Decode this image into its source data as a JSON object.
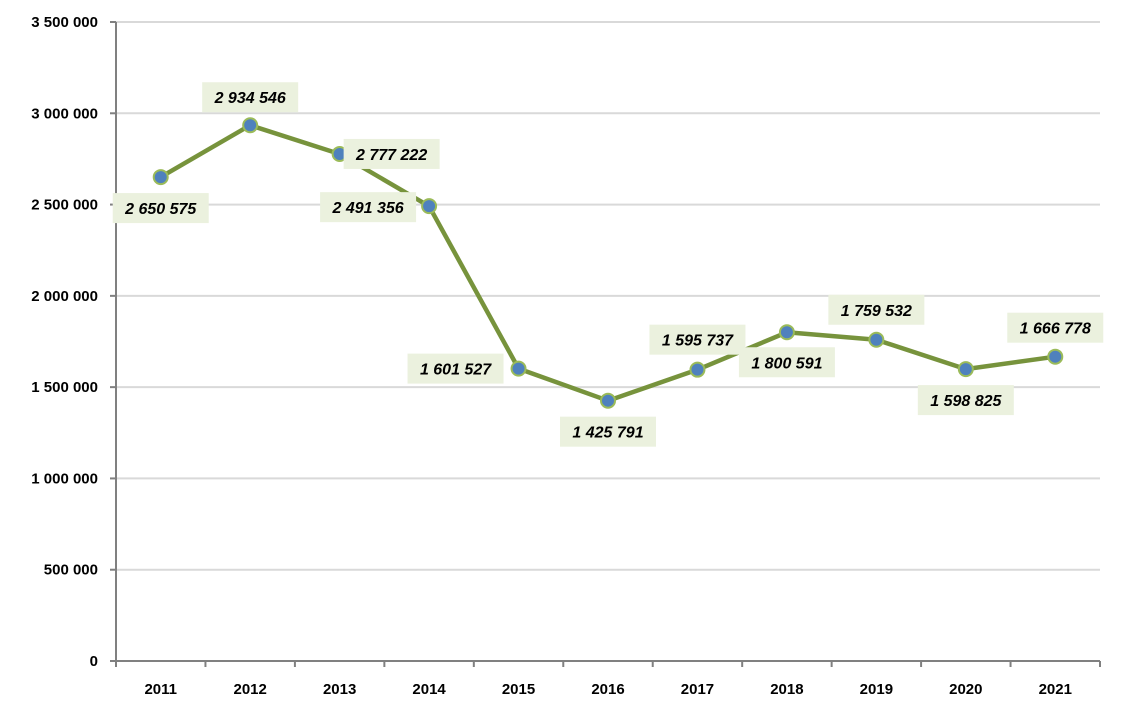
{
  "chart_data": {
    "type": "line",
    "title": "",
    "xlabel": "",
    "ylabel": "",
    "categories": [
      "2011",
      "2012",
      "2013",
      "2014",
      "2015",
      "2016",
      "2017",
      "2018",
      "2019",
      "2020",
      "2021"
    ],
    "series": [
      {
        "name": "",
        "values": [
          2650575,
          2934546,
          2777222,
          2491356,
          1601527,
          1425791,
          1595737,
          1800591,
          1759532,
          1598825,
          1666778
        ],
        "data_labels": [
          "2 650 575",
          "2 934 546",
          "2 777 222",
          "2 491 356",
          "1 601 527",
          "1 425 791",
          "1 595 737",
          "1 800 591",
          "1 759 532",
          "1 598 825",
          "1 666 778"
        ]
      }
    ],
    "ylim": [
      0,
      3500000
    ],
    "yticks": [
      0,
      500000,
      1000000,
      1500000,
      2000000,
      2500000,
      3000000,
      3500000
    ],
    "ytick_labels": [
      "0",
      "500 000",
      "1 000 000",
      "1 500 000",
      "2 000 000",
      "2 500 000",
      "3 000 000",
      "3 500 000"
    ],
    "grid": true,
    "legend": "none",
    "colors": {
      "line": "#77933c",
      "marker_fill": "#4f81bd",
      "marker_edge": "#9bbb59",
      "label_bg": "#ebf1de",
      "grid": "#d9d9d9",
      "axis": "#808080"
    }
  }
}
